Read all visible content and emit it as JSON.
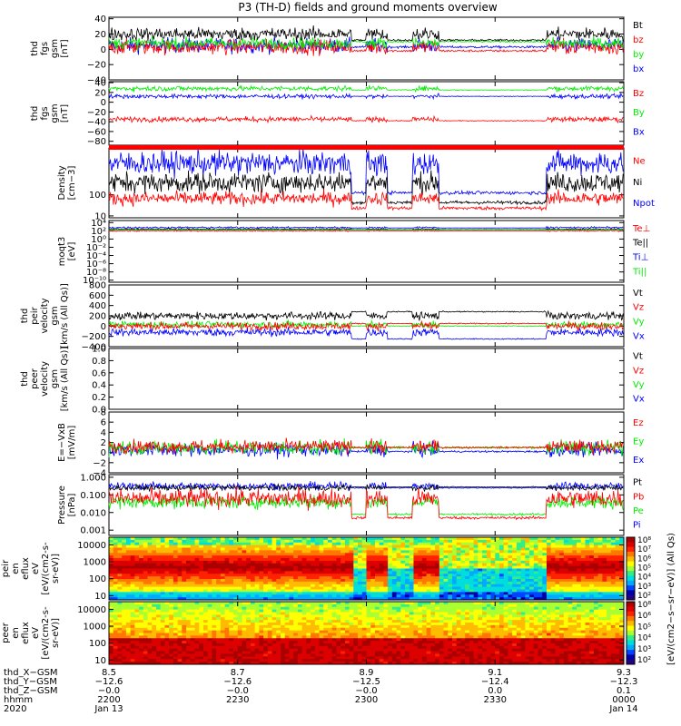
{
  "title": "P3 (TH-D) fields and ground moments overview",
  "colors": {
    "black": "#000000",
    "red": "#ff0000",
    "green": "#00ee00",
    "blue": "#0000ff"
  },
  "chart_data": [
    {
      "id": "p1",
      "type": "line",
      "ylabel": [
        "thd",
        "fgs",
        "gsm",
        "[nT]"
      ],
      "yticks": [
        {
          "v": 40,
          "t": "40"
        },
        {
          "v": 20,
          "t": "20"
        },
        {
          "v": 0,
          "t": "0"
        },
        {
          "v": -20,
          "t": "−20"
        },
        {
          "v": -40,
          "t": "−40"
        }
      ],
      "ylim": [
        -40,
        42
      ],
      "legend": [
        {
          "t": "Bt",
          "c": "black"
        },
        {
          "t": "bz",
          "c": "red"
        },
        {
          "t": "by",
          "c": "green"
        },
        {
          "t": "bx",
          "c": "blue"
        }
      ]
    },
    {
      "id": "p2",
      "type": "line",
      "ylabel": [
        "thd",
        "fgs",
        "gsm",
        "[nT]"
      ],
      "yticks": [
        {
          "v": 40,
          "t": "40"
        },
        {
          "v": 20,
          "t": "20"
        },
        {
          "v": 0,
          "t": "0"
        },
        {
          "v": -20,
          "t": "−20"
        },
        {
          "v": -40,
          "t": "−40"
        },
        {
          "v": -60,
          "t": "−60"
        },
        {
          "v": -80,
          "t": "−80"
        }
      ],
      "ylim": [
        -88,
        42
      ],
      "legend": [
        {
          "t": "Bz",
          "c": "red"
        },
        {
          "t": "By",
          "c": "green"
        },
        {
          "t": "Bx",
          "c": "blue"
        }
      ]
    },
    {
      "id": "p3",
      "type": "line",
      "ylabel": [
        "Density",
        "[cm−3]"
      ],
      "yticks": [
        {
          "v": 100,
          "t": "100"
        },
        {
          "v": 10,
          "t": "10"
        }
      ],
      "yscale": "log",
      "ylim": [
        2,
        300
      ],
      "legend": [
        {
          "t": "Ne",
          "c": "red"
        },
        {
          "t": "Ni",
          "c": "black"
        },
        {
          "t": "Npot",
          "c": "blue"
        }
      ]
    },
    {
      "id": "p4",
      "type": "line",
      "ylabel": [
        "moqt3",
        "[eV]"
      ],
      "yticks": [
        {
          "v": 4,
          "t": "10⁴"
        },
        {
          "v": 2,
          "t": "10²"
        },
        {
          "v": 0,
          "t": "10⁰"
        },
        {
          "v": -2,
          "t": "10⁻²"
        },
        {
          "v": -4,
          "t": "10⁻⁴"
        },
        {
          "v": -6,
          "t": "10⁻⁶"
        },
        {
          "v": -8,
          "t": "10⁻⁸"
        },
        {
          "v": -10,
          "t": "10⁻¹⁰"
        }
      ],
      "yscale": "log",
      "ylim": [
        -10.5,
        4.5
      ],
      "legend": [
        {
          "t": "Te⊥",
          "c": "red"
        },
        {
          "t": "Te||",
          "c": "black"
        },
        {
          "t": "Ti⊥",
          "c": "blue"
        },
        {
          "t": "Ti||",
          "c": "green"
        }
      ]
    },
    {
      "id": "p5",
      "type": "line",
      "ylabel": [
        "thd",
        "peir",
        "velocity",
        "gsm",
        "[km/s (All Qs)]"
      ],
      "yticks": [
        {
          "v": 800,
          "t": "800"
        },
        {
          "v": 600,
          "t": "600"
        },
        {
          "v": 400,
          "t": "400"
        },
        {
          "v": 200,
          "t": "200"
        },
        {
          "v": 0,
          "t": "0"
        },
        {
          "v": -200,
          "t": "−200"
        },
        {
          "v": -400,
          "t": "−400"
        }
      ],
      "ylim": [
        -400,
        800
      ],
      "legend": [
        {
          "t": "Vt",
          "c": "black"
        },
        {
          "t": "Vz",
          "c": "red"
        },
        {
          "t": "Vy",
          "c": "green"
        },
        {
          "t": "Vx",
          "c": "blue"
        }
      ]
    },
    {
      "id": "p6",
      "type": "line",
      "ylabel": [
        "thd",
        "peer",
        "velocity",
        "gsm",
        "[km/s (All Qs)]"
      ],
      "yticks": [
        {
          "v": 1.0,
          "t": "1.0"
        },
        {
          "v": 0.8,
          "t": "0.8"
        },
        {
          "v": 0.6,
          "t": "0.6"
        },
        {
          "v": 0.4,
          "t": "0.4"
        },
        {
          "v": 0.2,
          "t": "0.2"
        },
        {
          "v": 0.0,
          "t": "0.0"
        }
      ],
      "ylim": [
        0,
        1
      ],
      "legend": [
        {
          "t": "Vt",
          "c": "black"
        },
        {
          "t": "Vz",
          "c": "red"
        },
        {
          "t": "Vy",
          "c": "green"
        },
        {
          "t": "Vx",
          "c": "blue"
        }
      ]
    },
    {
      "id": "p7",
      "type": "line",
      "ylabel": [
        "E=−VxB",
        "[mV/m]"
      ],
      "yticks": [
        {
          "v": 8,
          "t": "8"
        },
        {
          "v": 6,
          "t": "6"
        },
        {
          "v": 4,
          "t": "4"
        },
        {
          "v": 2,
          "t": "2"
        },
        {
          "v": 0,
          "t": "0"
        },
        {
          "v": -2,
          "t": "−2"
        },
        {
          "v": -4,
          "t": "−4"
        }
      ],
      "ylim": [
        -4,
        8
      ],
      "legend": [
        {
          "t": "Ez",
          "c": "red"
        },
        {
          "t": "Ey",
          "c": "green"
        },
        {
          "t": "Ex",
          "c": "blue"
        }
      ]
    },
    {
      "id": "p8",
      "type": "line",
      "ylabel": [
        "Pressure",
        "[nPa]"
      ],
      "yticks": [
        {
          "v": 0,
          "t": "1.000"
        },
        {
          "v": -1,
          "t": "0.100"
        },
        {
          "v": -2,
          "t": "0.010"
        },
        {
          "v": -3,
          "t": "0.001"
        }
      ],
      "yscale": "log",
      "ylim": [
        -3.3,
        0.15
      ],
      "legend": [
        {
          "t": "Pt",
          "c": "black"
        },
        {
          "t": "Pb",
          "c": "red"
        },
        {
          "t": "Pe",
          "c": "green"
        },
        {
          "t": "Pi",
          "c": "blue"
        }
      ]
    },
    {
      "id": "p9",
      "type": "heatmap",
      "ylabel": [
        "thd",
        "peir",
        "en",
        "eflux",
        "eV",
        "[eV/(cm2-s-",
        "sr-eV)]"
      ],
      "yticks": [
        {
          "v": 4,
          "t": "10000"
        },
        {
          "v": 3,
          "t": "1000"
        },
        {
          "v": 2,
          "t": "100"
        },
        {
          "v": 1,
          "t": "10"
        }
      ],
      "yscale": "log",
      "ylim": [
        0.75,
        4.45
      ]
    },
    {
      "id": "p10",
      "type": "heatmap",
      "ylabel": [
        "thd",
        "peer",
        "en",
        "eflux",
        "eV",
        "[eV/(cm2-s-",
        "sr-eV)]"
      ],
      "yticks": [
        {
          "v": 4,
          "t": "10000"
        },
        {
          "v": 3,
          "t": "1000"
        },
        {
          "v": 2,
          "t": "100"
        },
        {
          "v": 1,
          "t": "10"
        }
      ],
      "yscale": "log",
      "ylim": [
        0.75,
        4.45
      ]
    }
  ],
  "colorbar": {
    "label": "[eV/(cm2−s−sr−eV)] (All Qs)",
    "ticks1": [
      "10⁸",
      "10⁷",
      "10⁶",
      "10⁵",
      "10⁴",
      "10³",
      "10²"
    ],
    "ticks2": [
      "10⁸",
      "10⁶",
      "10⁵",
      "10⁴",
      "10³",
      "10²"
    ]
  },
  "xaxis": {
    "rows": [
      {
        "label": "thd_X−GSM",
        "vals": [
          "8.5",
          "8.7",
          "8.9",
          "9.1",
          "9.3"
        ]
      },
      {
        "label": "thd_Y−GSM",
        "vals": [
          "−12.6",
          "−12.6",
          "−12.5",
          "−12.4",
          "−12.3"
        ]
      },
      {
        "label": "thd_Z−GSM",
        "vals": [
          "−0.0",
          "−0.0",
          "−0.0",
          "0.0",
          "0.1"
        ]
      },
      {
        "label": "hhmm",
        "vals": [
          "2200",
          "2230",
          "2300",
          "2330",
          "0000"
        ]
      },
      {
        "label": "2020",
        "vals": [
          "Jan 13",
          "",
          "",
          "",
          "Jan 14"
        ]
      }
    ]
  }
}
